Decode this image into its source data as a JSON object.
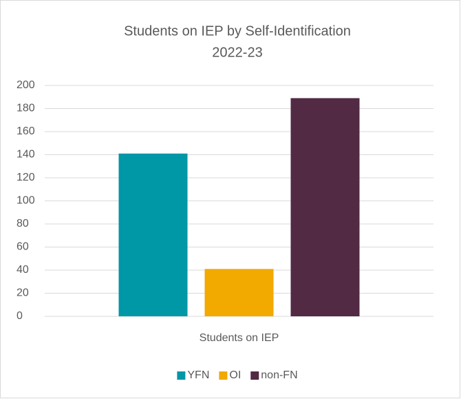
{
  "chart_data": {
    "type": "bar",
    "title": "Students on IEP by Self-Identification",
    "subtitle": "2022-23",
    "categories": [
      "Students on IEP"
    ],
    "series": [
      {
        "name": "YFN",
        "color": "#0097a7",
        "values": [
          141
        ]
      },
      {
        "name": "OI",
        "color": "#f2a900",
        "values": [
          41
        ]
      },
      {
        "name": "non-FN",
        "color": "#522a44",
        "values": [
          189
        ]
      }
    ],
    "ylim": [
      0,
      200
    ],
    "yticks": [
      0,
      20,
      40,
      60,
      80,
      100,
      120,
      140,
      160,
      180,
      200
    ],
    "grid": true,
    "legend": "bottom"
  }
}
